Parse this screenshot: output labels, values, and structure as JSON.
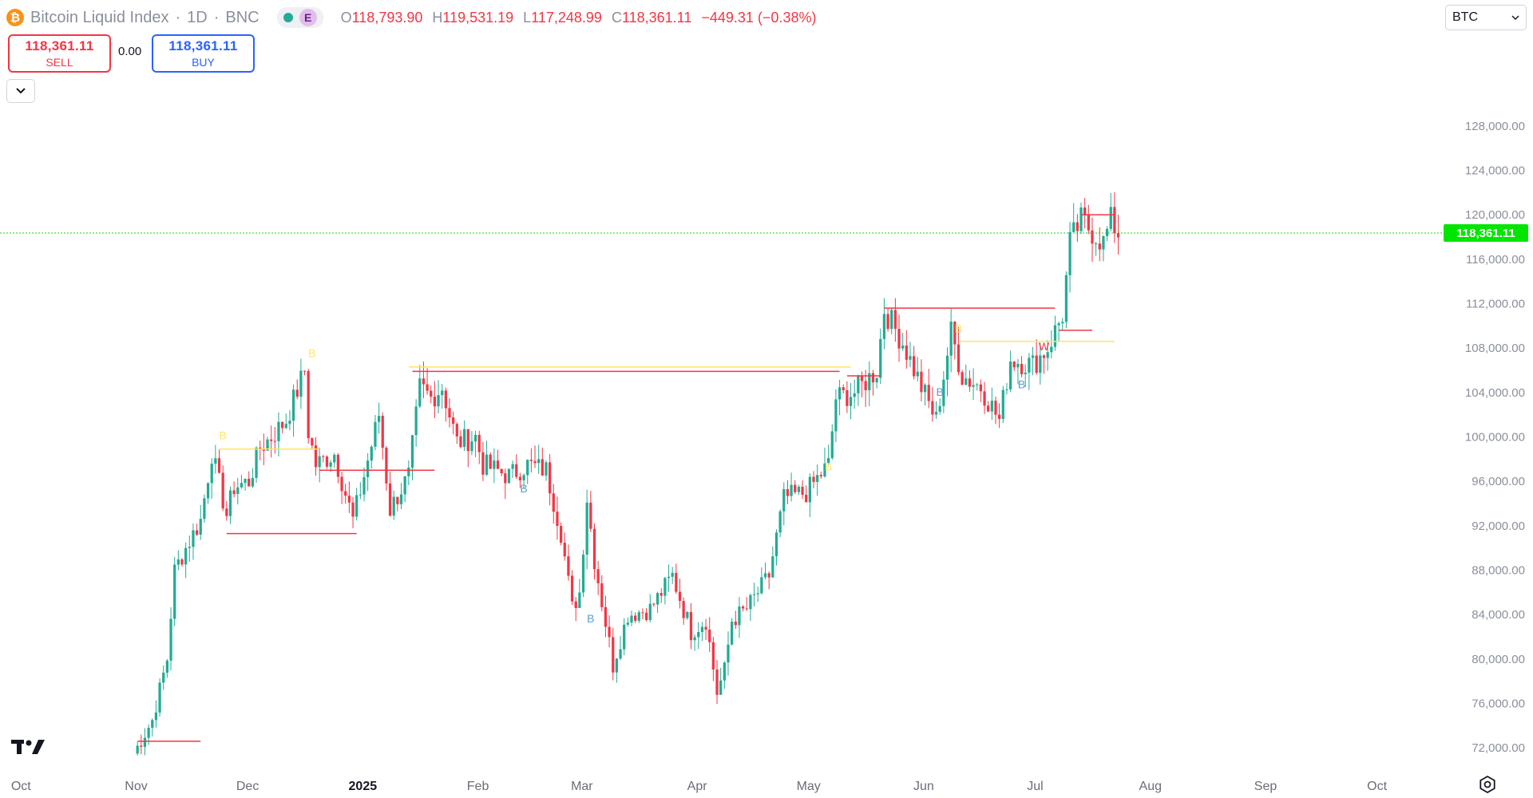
{
  "header": {
    "coin_icon": "bitcoin-icon",
    "title": "Bitcoin Liquid Index",
    "separator": "·",
    "interval": "1D",
    "exchange": "BNC",
    "badge_e": "E",
    "ohlc": [
      {
        "key": "O",
        "value": "118,793.90"
      },
      {
        "key": "H",
        "value": "119,531.19"
      },
      {
        "key": "L",
        "value": "117,248.99"
      },
      {
        "key": "C",
        "value": "118,361.11"
      }
    ],
    "change": "−449.31 (−0.38%)"
  },
  "trade": {
    "sell_price": "118,361.11",
    "sell_label": "SELL",
    "spread": "0.00",
    "buy_price": "118,361.11",
    "buy_label": "BUY"
  },
  "currency_select": {
    "value": "BTC"
  },
  "colors": {
    "up": "#22ab94",
    "down": "#f23645",
    "yellow": "#ffe55c",
    "red_line": "#f23645",
    "price_tag": "#00e600",
    "blue_label": "#5b9bd5"
  },
  "chart_data": {
    "type": "candlestick",
    "title": "Bitcoin Liquid Index · 1D · BNC",
    "last_price": "118,361.11",
    "last_value": 118361.11,
    "ylim": [
      70000,
      130000
    ],
    "y_ticks": [
      "72,000.00",
      "76,000.00",
      "80,000.00",
      "84,000.00",
      "88,000.00",
      "92,000.00",
      "96,000.00",
      "100,000.00",
      "104,000.00",
      "108,000.00",
      "112,000.00",
      "116,000.00",
      "120,000.00",
      "124,000.00",
      "128,000.00"
    ],
    "x_ticks": [
      "Oct",
      "Nov",
      "Dec",
      "2025",
      "Feb",
      "Mar",
      "Apr",
      "May",
      "Jun",
      "Jul",
      "Aug",
      "Sep",
      "Oct"
    ],
    "x_tick_bold": [
      false,
      false,
      false,
      true,
      false,
      false,
      false,
      false,
      false,
      false,
      false,
      false,
      false
    ],
    "x_range": [
      "2024-09-26",
      "2025-10-20"
    ],
    "close_path": [
      [
        "2024-11-01",
        71500
      ],
      [
        "2024-11-06",
        74500
      ],
      [
        "2024-11-10",
        80000
      ],
      [
        "2024-11-12",
        88000
      ],
      [
        "2024-11-15",
        90000
      ],
      [
        "2024-11-19",
        92500
      ],
      [
        "2024-11-22",
        98500
      ],
      [
        "2024-11-26",
        93000
      ],
      [
        "2024-11-28",
        95500
      ],
      [
        "2024-12-02",
        96000
      ],
      [
        "2024-12-05",
        99000
      ],
      [
        "2024-12-08",
        100000
      ],
      [
        "2024-12-12",
        101500
      ],
      [
        "2024-12-17",
        106000
      ],
      [
        "2024-12-18",
        100500
      ],
      [
        "2024-12-20",
        97500
      ],
      [
        "2024-12-25",
        98500
      ],
      [
        "2024-12-30",
        92500
      ],
      [
        "2025-01-02",
        96500
      ],
      [
        "2025-01-06",
        102000
      ],
      [
        "2025-01-09",
        93500
      ],
      [
        "2025-01-14",
        96500
      ],
      [
        "2025-01-17",
        104500
      ],
      [
        "2025-01-20",
        103500
      ],
      [
        "2025-01-23",
        104500
      ],
      [
        "2025-01-27",
        99500
      ],
      [
        "2025-02-01",
        100000
      ],
      [
        "2025-02-03",
        97500
      ],
      [
        "2025-02-10",
        96500
      ],
      [
        "2025-02-15",
        97500
      ],
      [
        "2025-02-20",
        97000
      ],
      [
        "2025-02-24",
        91500
      ],
      [
        "2025-02-27",
        84500
      ],
      [
        "2025-03-01",
        86000
      ],
      [
        "2025-03-03",
        94500
      ],
      [
        "2025-03-05",
        89000
      ],
      [
        "2025-03-10",
        79500
      ],
      [
        "2025-03-14",
        84000
      ],
      [
        "2025-03-20",
        84500
      ],
      [
        "2025-03-26",
        87500
      ],
      [
        "2025-03-31",
        82500
      ],
      [
        "2025-04-04",
        83500
      ],
      [
        "2025-04-07",
        77000
      ],
      [
        "2025-04-09",
        79000
      ],
      [
        "2025-04-11",
        83500
      ],
      [
        "2025-04-15",
        84500
      ],
      [
        "2025-04-21",
        87500
      ],
      [
        "2025-04-25",
        94500
      ],
      [
        "2025-05-01",
        95000
      ],
      [
        "2025-05-07",
        97500
      ],
      [
        "2025-05-09",
        103500
      ],
      [
        "2025-05-14",
        104000
      ],
      [
        "2025-05-20",
        106000
      ],
      [
        "2025-05-22",
        111500
      ],
      [
        "2025-05-27",
        108500
      ],
      [
        "2025-06-01",
        104500
      ],
      [
        "2025-06-05",
        101500
      ],
      [
        "2025-06-09",
        109500
      ],
      [
        "2025-06-12",
        105500
      ],
      [
        "2025-06-17",
        104500
      ],
      [
        "2025-06-22",
        101500
      ],
      [
        "2025-06-25",
        107000
      ],
      [
        "2025-07-01",
        106500
      ],
      [
        "2025-07-05",
        108000
      ],
      [
        "2025-07-09",
        111000
      ],
      [
        "2025-07-11",
        117500
      ],
      [
        "2025-07-14",
        119500
      ],
      [
        "2025-07-17",
        118500
      ],
      [
        "2025-07-20",
        117500
      ],
      [
        "2025-07-22",
        119500
      ],
      [
        "2025-07-24",
        118361
      ]
    ],
    "levels": [
      {
        "color": "yellow",
        "from": "2025-01-14",
        "to": "2025-05-13",
        "value": 106300
      },
      {
        "color": "red",
        "from": "2025-01-15",
        "to": "2025-05-10",
        "value": 105900
      },
      {
        "color": "yellow",
        "from": "2024-11-24",
        "to": "2024-12-21",
        "value": 98900
      },
      {
        "color": "red",
        "from": "2024-11-26",
        "to": "2024-12-31",
        "value": 91300
      },
      {
        "color": "red",
        "from": "2024-12-21",
        "to": "2025-01-21",
        "value": 97000
      },
      {
        "color": "red",
        "from": "2024-11-02",
        "to": "2024-11-19",
        "value": 72600
      },
      {
        "color": "red",
        "from": "2025-05-22",
        "to": "2025-07-07",
        "value": 111600
      },
      {
        "color": "red",
        "from": "2025-05-12",
        "to": "2025-05-21",
        "value": 105500
      },
      {
        "color": "yellow",
        "from": "2025-06-11",
        "to": "2025-07-23",
        "value": 108600
      },
      {
        "color": "red",
        "from": "2025-07-08",
        "to": "2025-07-17",
        "value": 109600
      },
      {
        "color": "red",
        "from": "2025-07-14",
        "to": "2025-07-23",
        "value": 120000
      }
    ],
    "markers": [
      {
        "text": "B",
        "color": "yellow",
        "date": "2024-11-25",
        "value": 99800
      },
      {
        "text": "B",
        "color": "yellow",
        "date": "2024-12-19",
        "value": 107200
      },
      {
        "text": "B",
        "color": "blue",
        "date": "2025-02-14",
        "value": 95000
      },
      {
        "text": "B",
        "color": "blue",
        "date": "2025-03-04",
        "value": 83300
      },
      {
        "text": "B",
        "color": "yellow",
        "date": "2025-05-07",
        "value": 97000
      },
      {
        "text": "B",
        "color": "blue",
        "date": "2025-06-06",
        "value": 103700
      },
      {
        "text": "B",
        "color": "yellow",
        "date": "2025-06-11",
        "value": 109400
      },
      {
        "text": "B",
        "color": "blue",
        "date": "2025-06-28",
        "value": 104400
      },
      {
        "text": "W",
        "color": "red",
        "date": "2025-07-04",
        "value": 107800
      }
    ]
  }
}
